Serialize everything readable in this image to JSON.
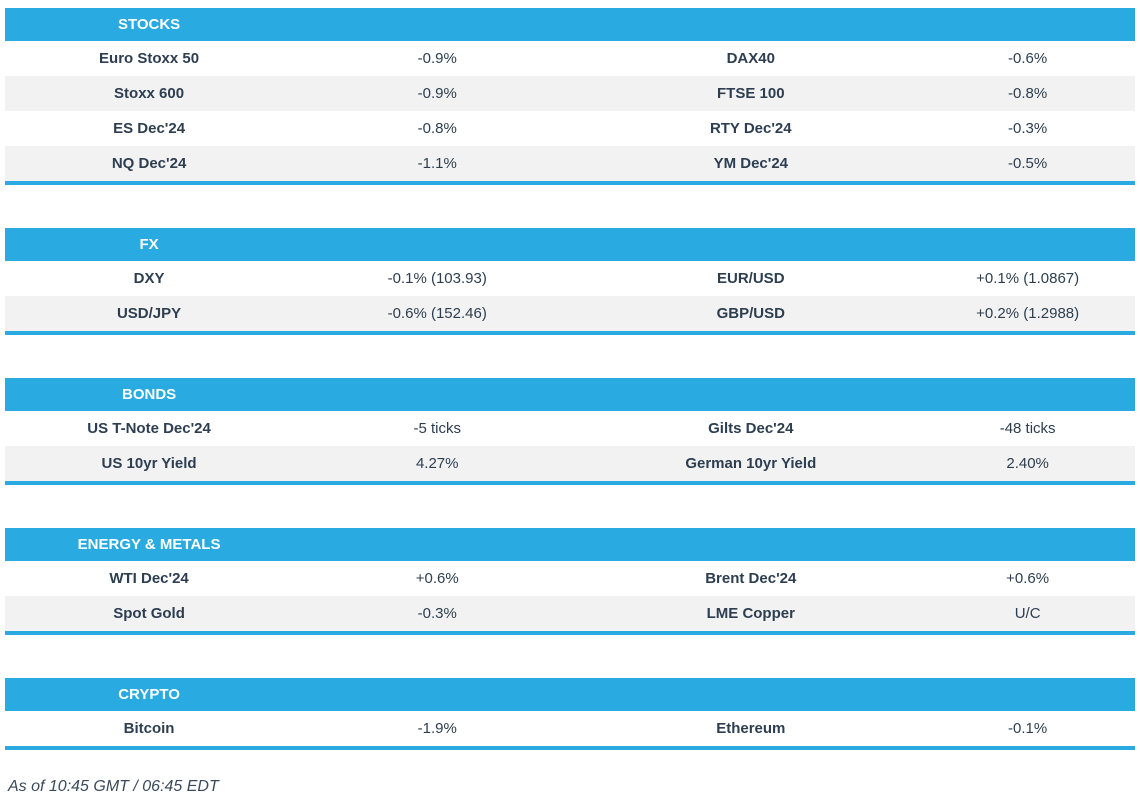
{
  "colors": {
    "accent_blue": "#29ABE2",
    "row_alt_gray": "#F2F2F2",
    "text_navy": "#2C3E50",
    "header_text": "#FFFFFF"
  },
  "footer": {
    "text": "As of 10:45 GMT / 06:45 EDT"
  },
  "sections": [
    {
      "title": "STOCKS",
      "rows": [
        {
          "label1": "Euro Stoxx 50",
          "value1": "-0.9%",
          "label2": "DAX40",
          "value2": "-0.6%"
        },
        {
          "label1": "Stoxx 600",
          "value1": "-0.9%",
          "label2": "FTSE 100",
          "value2": "-0.8%"
        },
        {
          "label1": "ES Dec'24",
          "value1": "-0.8%",
          "label2": "RTY Dec'24",
          "value2": "-0.3%"
        },
        {
          "label1": "NQ Dec'24",
          "value1": "-1.1%",
          "label2": "YM Dec'24",
          "value2": "-0.5%"
        }
      ]
    },
    {
      "title": "FX",
      "rows": [
        {
          "label1": "DXY",
          "value1": "-0.1% (103.93)",
          "label2": "EUR/USD",
          "value2": "+0.1% (1.0867)"
        },
        {
          "label1": "USD/JPY",
          "value1": "-0.6% (152.46)",
          "label2": "GBP/USD",
          "value2": "+0.2% (1.2988)"
        }
      ]
    },
    {
      "title": "BONDS",
      "rows": [
        {
          "label1": "US T-Note Dec'24",
          "value1": "-5 ticks",
          "label2": "Gilts Dec'24",
          "value2": "-48 ticks"
        },
        {
          "label1": "US 10yr Yield",
          "value1": "4.27%",
          "label2": "German 10yr Yield",
          "value2": "2.40%"
        }
      ]
    },
    {
      "title": "ENERGY & METALS",
      "rows": [
        {
          "label1": "WTI Dec'24",
          "value1": "+0.6%",
          "label2": "Brent Dec'24",
          "value2": "+0.6%"
        },
        {
          "label1": "Spot Gold",
          "value1": "-0.3%",
          "label2": "LME Copper",
          "value2": "U/C"
        }
      ]
    },
    {
      "title": "CRYPTO",
      "rows": [
        {
          "label1": "Bitcoin",
          "value1": "-1.9%",
          "label2": "Ethereum",
          "value2": "-0.1%"
        }
      ]
    }
  ]
}
